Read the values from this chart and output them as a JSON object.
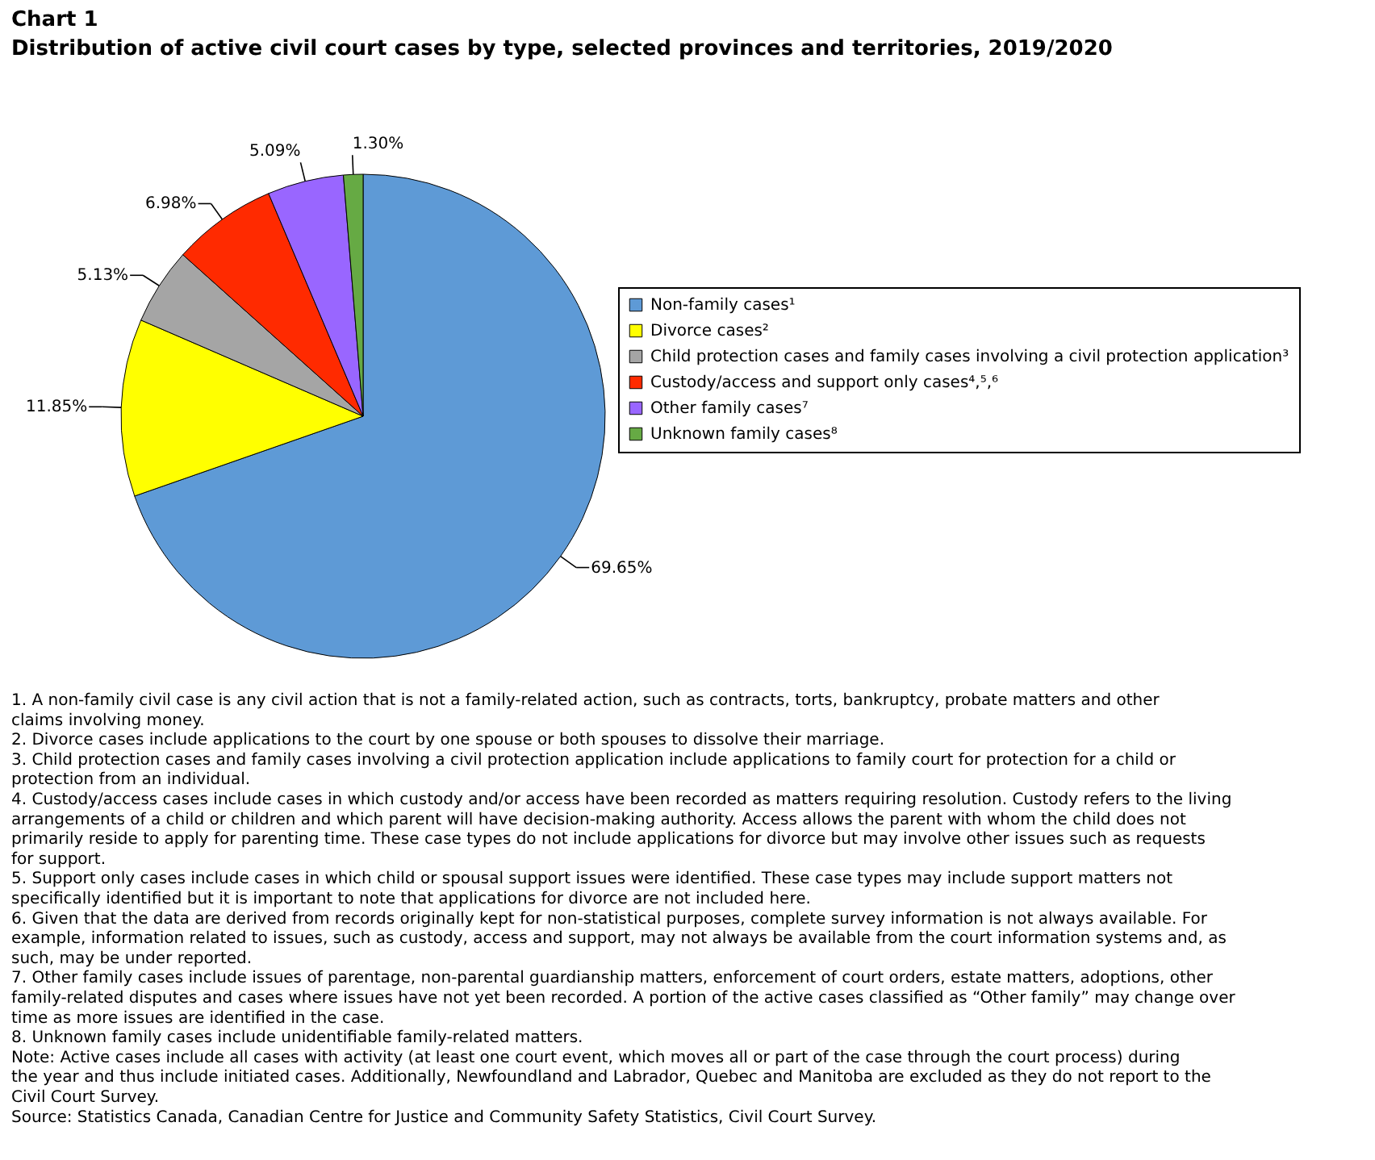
{
  "chart_data": {
    "type": "pie",
    "title": "Chart 1",
    "subtitle": "Distribution of active civil court cases by type, selected provinces and territories, 2019/2020",
    "categories": [
      "Non-family cases¹",
      "Divorce cases²",
      "Child protection cases and family cases involving a civil protection application³",
      "Custody/access and support only cases⁴,⁵,⁶",
      "Other family cases⁷",
      "Unknown family cases⁸"
    ],
    "values": [
      69.65,
      11.85,
      5.13,
      6.98,
      5.09,
      1.3
    ],
    "value_labels": [
      "69.65%",
      "11.85%",
      "5.13%",
      "6.98%",
      "5.09%",
      "1.30%"
    ],
    "colors": [
      "#5e9ad6",
      "#ffff00",
      "#a5a5a5",
      "#ff2a00",
      "#9966ff",
      "#66aa44"
    ],
    "legend": "right",
    "annotations": [
      "1. A non-family civil case is any civil action that is not a family-related action, such as contracts, torts, bankruptcy, probate matters and other claims involving money.",
      "2. Divorce cases include applications to the court by one spouse or both spouses to dissolve their marriage.",
      "3. Child protection cases and family cases involving a civil protection application include applications to family court for protection for a child or protection from an individual.",
      "4. Custody/access cases include cases in which custody and/or access have been recorded as matters requiring resolution. Custody refers to the living arrangements of a child or children and which parent will have decision-making authority. Access allows the parent with whom the child does not primarily reside to apply for parenting time. These case types do not include applications for divorce but may involve other issues such as requests for support.",
      "5. Support only cases include cases in which child or spousal support issues were identified. These case types may include support matters not specifically identified but it is important to note that applications for divorce are not included here.",
      "6. Given that the data are derived from records originally kept for non-statistical purposes, complete survey information is not always available. For example, information related to issues, such as custody, access and support, may not always be available from the court information systems and, as such, may be under reported.",
      "7. Other family cases include issues of parentage, non-parental guardianship matters, enforcement of court orders, estate matters, adoptions, other family-related disputes and cases where issues have not yet been recorded. A portion of the active cases classified as “Other family” may change over time as more issues are identified in the case.",
      "8. Unknown family cases include unidentifiable family-related matters.",
      "Note: Active cases include all cases with activity (at least one court event, which moves all or part of the case through the court process) during the year and thus include initiated cases. Additionally, Newfoundland and Labrador, Quebec and Manitoba are excluded as they do not report to the Civil Court Survey.",
      "Source: Statistics Canada, Canadian Centre for Justice and Community Safety Statistics, Civil Court Survey."
    ]
  }
}
